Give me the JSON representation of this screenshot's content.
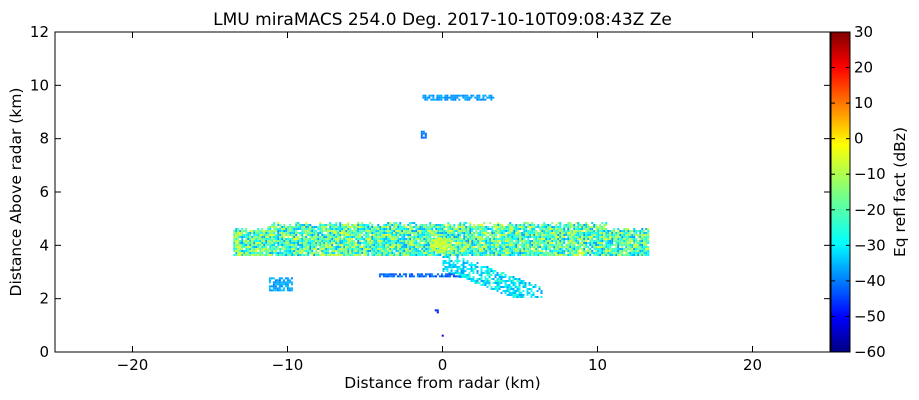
{
  "chart_data": {
    "type": "heatmap",
    "title": "LMU miraMACS 254.0 Deg. 2017-10-10T09:08:43Z  Ze",
    "xlabel": "Distance from radar (km)",
    "ylabel": "Distance Above radar  (km)",
    "xlim": [
      -25,
      25
    ],
    "ylim": [
      0,
      12
    ],
    "xticks": [
      -20,
      -10,
      0,
      10,
      20
    ],
    "xtick_labels": [
      "−20",
      "−10",
      "0",
      "10",
      "20"
    ],
    "yticks": [
      0,
      2,
      4,
      6,
      8,
      10,
      12
    ],
    "ytick_labels": [
      "0",
      "2",
      "4",
      "6",
      "8",
      "10",
      "12"
    ],
    "grid": false,
    "colorbar": {
      "label": "Eq refl fact (dBz)",
      "colormap": "jet",
      "range": [
        -60,
        30
      ],
      "ticks": [
        -60,
        -50,
        -40,
        -30,
        -20,
        -10,
        0,
        10,
        20,
        30
      ],
      "tick_labels": [
        "−60",
        "−50",
        "−40",
        "−30",
        "−20",
        "−10",
        "0",
        "10",
        "20",
        "30"
      ]
    },
    "echo_regions": [
      {
        "x": [
          -13.5,
          13.4
        ],
        "y": [
          3.6,
          4.95
        ],
        "ze_range": [
          -35,
          -5
        ],
        "kind": "main-cloud-layer"
      },
      {
        "x": [
          -0.8,
          0.6
        ],
        "y": [
          3.7,
          4.3
        ],
        "ze_range": [
          -12,
          -5
        ],
        "kind": "core"
      },
      {
        "x": [
          0.0,
          6.5
        ],
        "y": [
          2.0,
          3.6
        ],
        "ze_range": [
          -35,
          -20
        ],
        "kind": "fall-streaks"
      },
      {
        "x": [
          -4.1,
          1.2
        ],
        "y": [
          2.8,
          2.95
        ],
        "ze_range": [
          -45,
          -35
        ],
        "kind": "thin-band"
      },
      {
        "x": [
          -11.2,
          -9.7
        ],
        "y": [
          2.25,
          2.8
        ],
        "ze_range": [
          -38,
          -30
        ],
        "kind": "small-patch"
      },
      {
        "x": [
          -1.3,
          3.4
        ],
        "y": [
          9.45,
          9.65
        ],
        "ze_range": [
          -38,
          -32
        ],
        "kind": "upper-layer"
      },
      {
        "x": [
          -1.4,
          -1.0
        ],
        "y": [
          8.0,
          8.3
        ],
        "ze_range": [
          -40,
          -35
        ],
        "kind": "speck"
      },
      {
        "x": [
          -0.5,
          -0.1
        ],
        "y": [
          1.45,
          1.6
        ],
        "ze_range": [
          -48,
          -42
        ],
        "kind": "speck"
      },
      {
        "x": [
          -0.05,
          0.05
        ],
        "y": [
          0.6,
          0.65
        ],
        "ze_range": [
          -55,
          -50
        ],
        "kind": "speck"
      }
    ]
  }
}
